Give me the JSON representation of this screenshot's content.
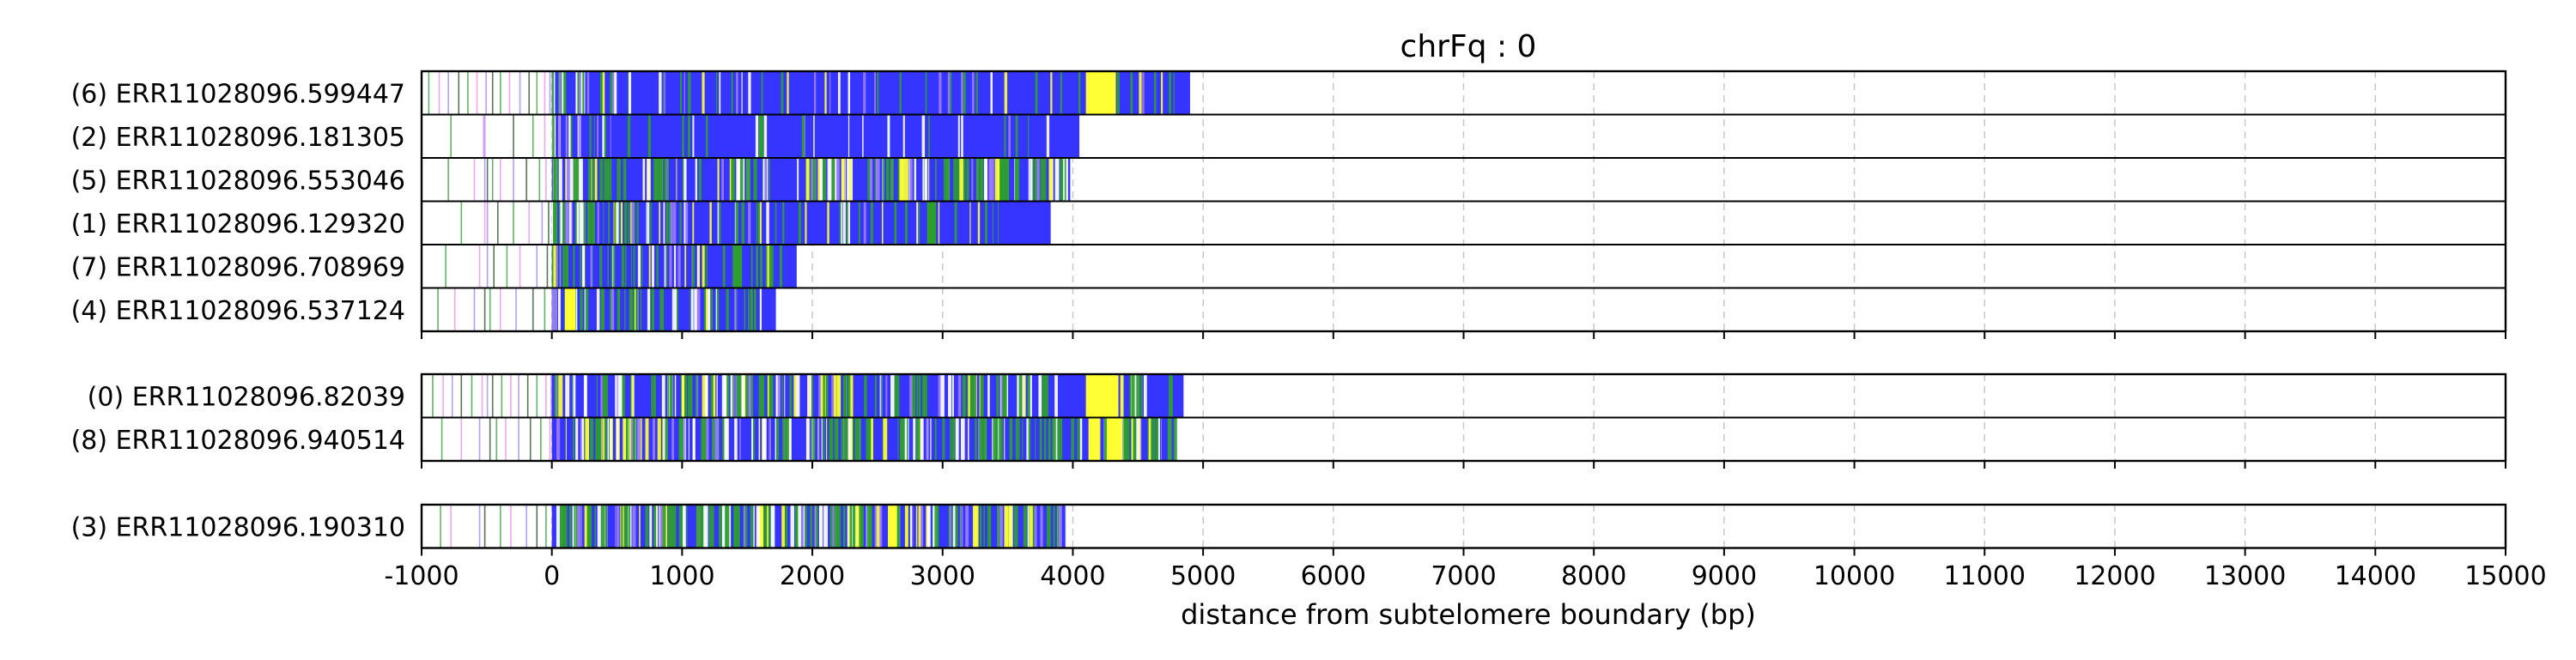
{
  "chart_data": {
    "type": "read-track-plot",
    "title": "chrFq : 0",
    "xlabel": "distance from subtelomere boundary (bp)",
    "xlim": [
      -1000,
      15000
    ],
    "xticks": [
      -1000,
      0,
      1000,
      2000,
      3000,
      4000,
      5000,
      6000,
      7000,
      8000,
      9000,
      10000,
      11000,
      12000,
      13000,
      14000,
      15000
    ],
    "xtick_labels": [
      "-1000",
      "0",
      "1000",
      "2000",
      "3000",
      "4000",
      "5000",
      "6000",
      "7000",
      "8000",
      "9000",
      "10000",
      "11000",
      "12000",
      "13000",
      "14000",
      "15000"
    ],
    "grid": "vertical dashed",
    "colors": {
      "main": "#3535ff",
      "yellow": "#ffff33",
      "green": "#2e9e2e",
      "white": "#ffffff",
      "pink": "#ee88ee",
      "violet": "#9a7cff",
      "dark": "#1f4a1f",
      "grid": "#c8c8c8"
    },
    "groups": [
      {
        "reads": [
          {
            "label": "(6) ERR11028096.599447",
            "pre": [
              -950,
              -870,
              -800,
              -720,
              -650,
              -580,
              -510,
              -460,
              -400,
              -330,
              -250,
              -180,
              -120,
              -60,
              -20
            ],
            "main_start": 0,
            "main_end": 4900,
            "density": 0.25,
            "blocks": [
              [
                4100,
                4330,
                "yellow"
              ]
            ]
          },
          {
            "label": "(2) ERR11028096.181305",
            "pre": [
              -780,
              -530,
              -520,
              -300,
              -150,
              -60
            ],
            "main_start": 0,
            "main_end": 4050,
            "density": 0.12,
            "blocks": []
          },
          {
            "label": "(5) ERR11028096.553046",
            "pre": [
              -800,
              -600,
              -520,
              -500,
              -460,
              -400,
              -300,
              -200,
              -100,
              -50
            ],
            "main_start": 0,
            "main_end": 3980,
            "density": 0.8,
            "blocks": []
          },
          {
            "label": "(1) ERR11028096.129320",
            "pre": [
              -700,
              -520,
              -500,
              -420,
              -300,
              -180,
              -80,
              -30
            ],
            "main_start": 0,
            "main_end": 3830,
            "density": 0.45,
            "blocks": [
              [
                2880,
                2950,
                "green"
              ]
            ]
          },
          {
            "label": "(7) ERR11028096.708969",
            "pre": [
              -820,
              -560,
              -500,
              -450,
              -350,
              -250,
              -120,
              -40
            ],
            "main_start": 0,
            "main_end": 1880,
            "density": 0.4,
            "blocks": [
              [
                1400,
                1460,
                "green"
              ]
            ]
          },
          {
            "label": "(4) ERR11028096.537124",
            "pre": [
              -880,
              -750,
              -600,
              -520,
              -480,
              -400,
              -280,
              -150,
              -60
            ],
            "main_start": 0,
            "main_end": 1720,
            "density": 0.55,
            "blocks": [
              [
                100,
                180,
                "yellow"
              ]
            ]
          }
        ]
      },
      {
        "reads": [
          {
            "label": "(0) ERR11028096.82039",
            "pre": [
              -920,
              -840,
              -770,
              -700,
              -620,
              -540,
              -500,
              -460,
              -390,
              -320,
              -260,
              -190,
              -120,
              -50,
              -10
            ],
            "main_start": 0,
            "main_end": 4850,
            "density": 0.7,
            "blocks": [
              [
                4100,
                4350,
                "yellow"
              ]
            ]
          },
          {
            "label": "(8) ERR11028096.940514",
            "pre": [
              -850,
              -700,
              -560,
              -480,
              -430,
              -360,
              -260,
              -170,
              -90,
              -20
            ],
            "main_start": 0,
            "main_end": 4780,
            "density": 0.9,
            "blocks": [
              [
                4120,
                4200,
                "yellow"
              ],
              [
                4260,
                4380,
                "yellow"
              ]
            ]
          }
        ]
      },
      {
        "reads": [
          {
            "label": "(3) ERR11028096.190310",
            "pre": [
              -860,
              -780,
              -560,
              -520,
              -400,
              -320,
              -200,
              -120,
              -50
            ],
            "main_start": 0,
            "main_end": 3950,
            "density": 1.1,
            "blocks": [
              [
                2580,
                2650,
                "yellow"
              ]
            ]
          }
        ]
      }
    ]
  }
}
